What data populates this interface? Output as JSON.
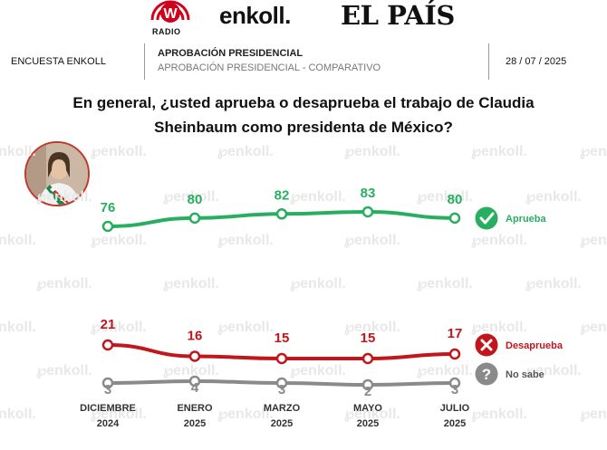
{
  "logos": {
    "radio_letter": "W",
    "radio_label": "RADIO",
    "enkoll": "enkoll.",
    "elpais": "EL PAÍS"
  },
  "header": {
    "survey": "ENCUESTA ENKOLL",
    "title": "APROBACIÓN PRESIDENCIAL",
    "subtitle": "APROBACIÓN PRESIDENCIAL - COMPARATIVO",
    "date": "28 / 07 / 2025"
  },
  "question_line1": "En general, ¿usted aprueba o desaprueba el trabajo de Claudia",
  "question_line2": "Sheinbaum como presidenta de México?",
  "watermark": "enkoll.",
  "colors": {
    "aprueba": "#27ae60",
    "desaprueba": "#c0161c",
    "nosabe": "#8a8a8a",
    "radio_red": "#d0021b"
  },
  "chart_data": {
    "type": "line",
    "categories": [
      [
        "DICIEMBRE",
        "2024"
      ],
      [
        "ENERO",
        "2025"
      ],
      [
        "MARZO",
        "2025"
      ],
      [
        "MAYO",
        "2025"
      ],
      [
        "JULIO",
        "2025"
      ]
    ],
    "series": [
      {
        "name": "Aprueba",
        "values": [
          76,
          80,
          82,
          83,
          80
        ],
        "color": "#27ae60",
        "icon": "check-icon"
      },
      {
        "name": "Desaprueba",
        "values": [
          21,
          16,
          15,
          15,
          17
        ],
        "color": "#c0161c",
        "icon": "x-icon"
      },
      {
        "name": "No sabe",
        "values": [
          3,
          4,
          3,
          2,
          3
        ],
        "color": "#8a8a8a",
        "icon": "question-icon"
      }
    ],
    "legend_position": "right",
    "grid": false
  }
}
